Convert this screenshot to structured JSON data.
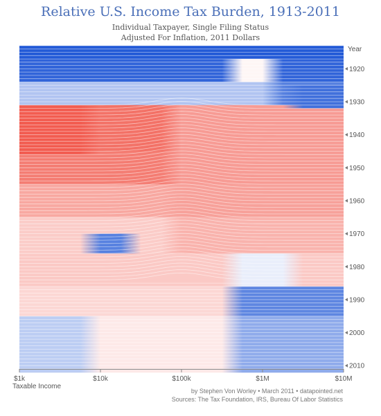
{
  "chart_data": {
    "type": "heatmap",
    "title": "Relative U.S. Income Tax Burden, 1913-2011",
    "subtitle_lines": [
      "Individual Taxpayer, Single Filing Status",
      "Adjusted For Inflation, 2011 Dollars"
    ],
    "xlabel": "Taxable Income",
    "ylabel": "Year",
    "x_scale": "log",
    "xlim": [
      1000,
      10000000
    ],
    "ylim": [
      1913,
      2011
    ],
    "x_ticks": [
      "$1k",
      "$10k",
      "$100k",
      "$1M",
      "$10M"
    ],
    "x_tick_values": [
      1000,
      10000,
      100000,
      1000000,
      10000000
    ],
    "y_ticks": [
      "1920",
      "1930",
      "1940",
      "1950",
      "1960",
      "1970",
      "1980",
      "1990",
      "2000",
      "2010"
    ],
    "y_tick_values": [
      1920,
      1930,
      1940,
      1950,
      1960,
      1970,
      1980,
      1990,
      2000,
      2010
    ],
    "color_scale": {
      "lower": "#1f57d6",
      "neutral": "#ffffff",
      "higher": "#f04a3c"
    },
    "grid": false,
    "legend": "none"
  },
  "footer": {
    "credit": "by Stephen Von Worley • March 2011 • datapointed.net",
    "sources": "Sources: The Tax Foundation, IRS, Bureau Of Labor Statistics"
  }
}
